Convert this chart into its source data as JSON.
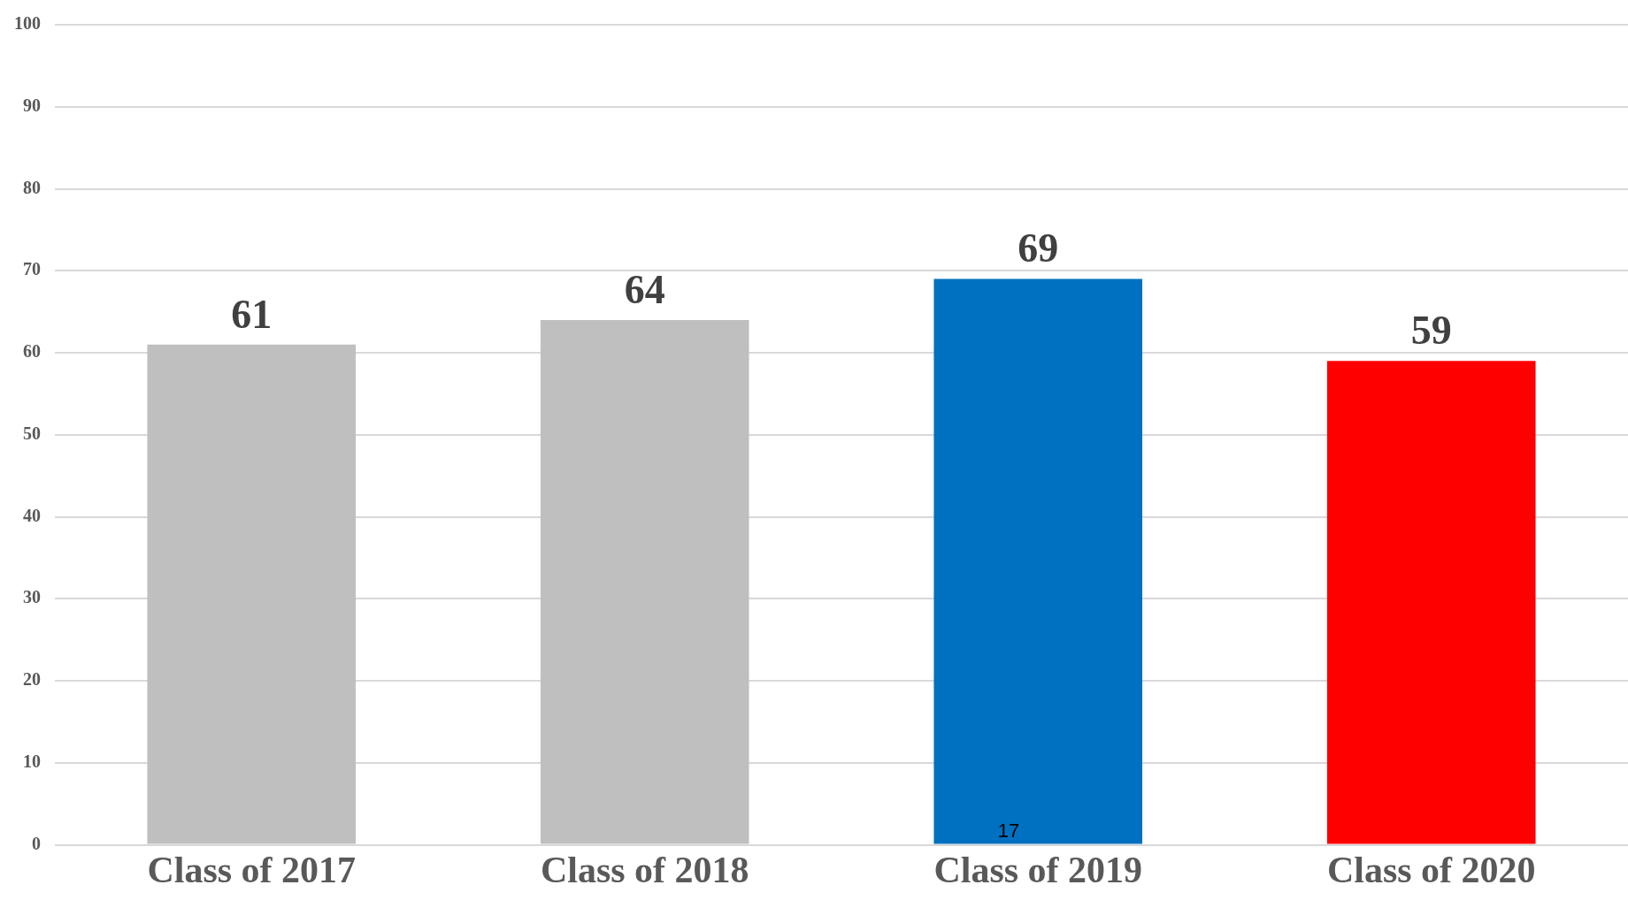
{
  "chart_data": {
    "type": "bar",
    "categories": [
      "Class of 2017",
      "Class of 2018",
      "Class of 2019",
      "Class of 2020"
    ],
    "values": [
      61,
      64,
      69,
      59
    ],
    "colors": [
      "#bfbfbf",
      "#bfbfbf",
      "#0070c0",
      "#ff0000"
    ],
    "ylim": [
      0,
      100
    ],
    "yticks": [
      0,
      10,
      20,
      30,
      40,
      50,
      60,
      70,
      80,
      90,
      100
    ],
    "grid": "y",
    "data_labels": true,
    "annotations": [
      "17"
    ]
  }
}
